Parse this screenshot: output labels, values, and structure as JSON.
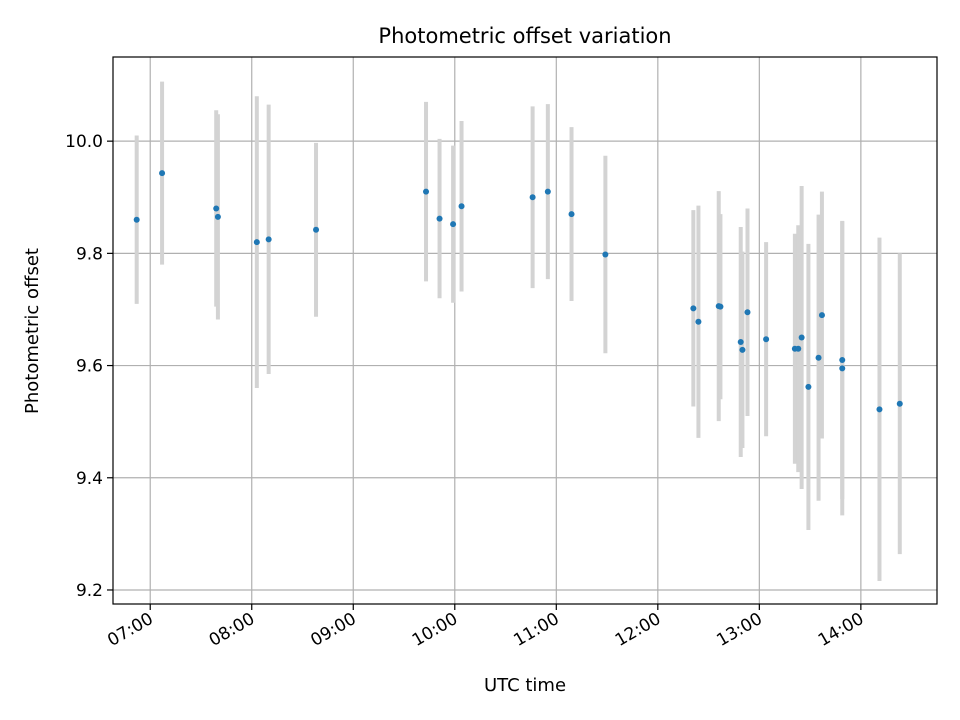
{
  "chart_data": {
    "type": "scatter",
    "title": "Photometric offset variation",
    "xlabel": "UTC time",
    "ylabel": "Photometric offset",
    "xlim": [
      "06:38",
      "14:45"
    ],
    "ylim": [
      9.175,
      10.15
    ],
    "grid": true,
    "x_ticks": [
      "07:00",
      "08:00",
      "09:00",
      "10:00",
      "11:00",
      "12:00",
      "13:00",
      "14:00"
    ],
    "y_ticks": [
      9.2,
      9.4,
      9.6,
      9.8,
      10.0
    ],
    "y_tick_labels": [
      "9.2",
      "9.4",
      "9.6",
      "9.8",
      "10.0"
    ],
    "colors": {
      "marker": "#1f77b4",
      "errorbar": "#d3d3d3",
      "grid": "#b0b0b0"
    },
    "series": [
      {
        "points": [
          {
            "x": "06:52",
            "y": 9.86,
            "err": 0.15
          },
          {
            "x": "07:07",
            "y": 9.943,
            "err": 0.163
          },
          {
            "x": "07:39",
            "y": 9.88,
            "err": 0.175
          },
          {
            "x": "07:40",
            "y": 9.865,
            "err": 0.183
          },
          {
            "x": "08:03",
            "y": 9.82,
            "err": 0.26
          },
          {
            "x": "08:10",
            "y": 9.825,
            "err": 0.24
          },
          {
            "x": "08:38",
            "y": 9.842,
            "err": 0.155
          },
          {
            "x": "09:43",
            "y": 9.91,
            "err": 0.16
          },
          {
            "x": "09:51",
            "y": 9.862,
            "err": 0.142
          },
          {
            "x": "09:59",
            "y": 9.852,
            "err": 0.14
          },
          {
            "x": "10:04",
            "y": 9.884,
            "err": 0.152
          },
          {
            "x": "10:46",
            "y": 9.9,
            "err": 0.162
          },
          {
            "x": "10:55",
            "y": 9.91,
            "err": 0.156
          },
          {
            "x": "11:09",
            "y": 9.87,
            "err": 0.155
          },
          {
            "x": "11:29",
            "y": 9.798,
            "err": 0.176
          },
          {
            "x": "12:21",
            "y": 9.702,
            "err": 0.175
          },
          {
            "x": "12:24",
            "y": 9.678,
            "err": 0.207
          },
          {
            "x": "12:36",
            "y": 9.706,
            "err": 0.205
          },
          {
            "x": "12:37",
            "y": 9.705,
            "err": 0.165
          },
          {
            "x": "12:49",
            "y": 9.642,
            "err": 0.205
          },
          {
            "x": "12:50",
            "y": 9.628,
            "err": 0.175
          },
          {
            "x": "12:53",
            "y": 9.695,
            "err": 0.185
          },
          {
            "x": "13:04",
            "y": 9.647,
            "err": 0.173
          },
          {
            "x": "13:21",
            "y": 9.63,
            "err": 0.205
          },
          {
            "x": "13:23",
            "y": 9.63,
            "err": 0.22
          },
          {
            "x": "13:25",
            "y": 9.65,
            "err": 0.27
          },
          {
            "x": "13:29",
            "y": 9.562,
            "err": 0.255
          },
          {
            "x": "13:35",
            "y": 9.614,
            "err": 0.255
          },
          {
            "x": "13:37",
            "y": 9.69,
            "err": 0.22
          },
          {
            "x": "13:49",
            "y": 9.61,
            "err": 0.248
          },
          {
            "x": "13:49",
            "y": 9.595,
            "err": 0.262
          },
          {
            "x": "14:11",
            "y": 9.522,
            "err": 0.306
          },
          {
            "x": "14:23",
            "y": 9.532,
            "err": 0.268
          }
        ]
      }
    ]
  }
}
